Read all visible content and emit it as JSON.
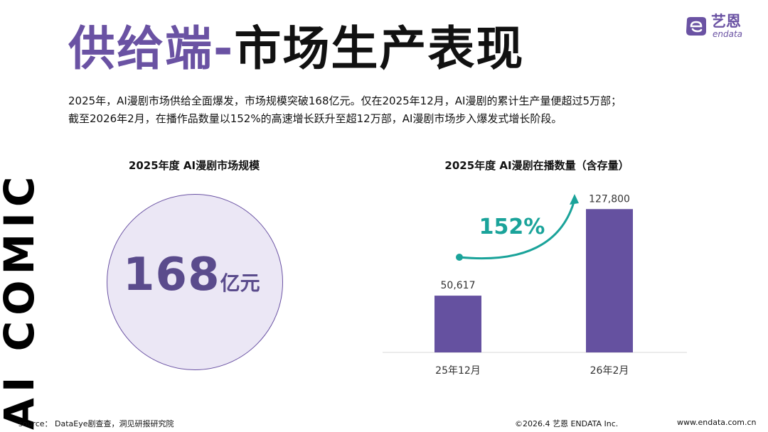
{
  "side_watermark": "AI COMIC",
  "title": {
    "accent": "供给端-",
    "main": "市场生产表现"
  },
  "logo": {
    "name_cn": "艺恩",
    "name_en": "endata"
  },
  "description": [
    "2025年，AI漫剧市场供给全面爆发，市场规模突破168亿元。仅在2025年12月，AI漫剧的累计生产量便超过5万部；",
    "截至2026年2月，在播作品数量以152%的高速增长跃升至超12万部，AI漫剧市场步入爆发式增长阶段。"
  ],
  "left_panel": {
    "title": "2025年度 AI漫剧市场规模",
    "value": "168",
    "unit": "亿元"
  },
  "chart_data": {
    "type": "bar",
    "title": "2025年度 AI漫剧在播数量（含存量）",
    "categories": [
      "25年12月",
      "26年2月"
    ],
    "values": [
      50617,
      127800
    ],
    "value_labels": [
      "50,617",
      "127,800"
    ],
    "growth_annotation": "152%",
    "ylim": [
      0,
      140000
    ],
    "grid": false,
    "legend": "none",
    "colors": {
      "bar": "#6551a0",
      "arrow": "#1aa39a"
    }
  },
  "footer": {
    "source": "source： DataEye剧查查，洞见研报研究院",
    "copyright": "©2026.4  艺恩 ENDATA Inc.",
    "website": "www.endata.com.cn"
  }
}
